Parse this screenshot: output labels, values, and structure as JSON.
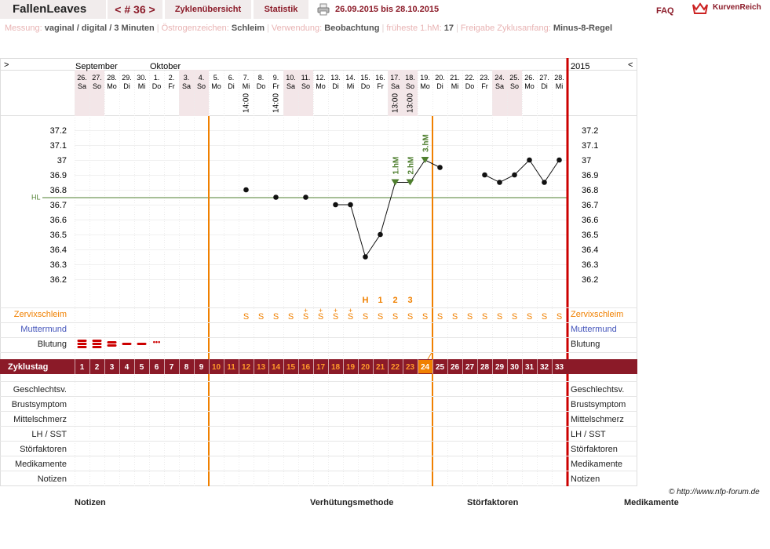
{
  "app": {
    "name": "FallenLeaves",
    "cycle_nav": "< # 36 >",
    "cycles_tab": "Zyklenübersicht",
    "stats_tab": "Statistik",
    "date_range": "26.09.2015 bis 28.10.2015",
    "faq": "FAQ",
    "brand": "KurvenReich"
  },
  "settings": [
    {
      "label": "Messung:",
      "value": "vaginal / digital / 3 Minuten"
    },
    {
      "label": "Östrogenzeichen:",
      "value": "Schleim"
    },
    {
      "label": "Verwendung:",
      "value": "Beobachtung"
    },
    {
      "label": "früheste 1.hM:",
      "value": "17"
    },
    {
      "label": "Freigabe Zyklusanfang:",
      "value": "Minus-8-Regel"
    }
  ],
  "header": {
    "expand_left": ">",
    "expand_right": "<",
    "month1": "September",
    "month2": "Oktober",
    "year": "2015"
  },
  "days": [
    {
      "d": "26.",
      "w": "Sa",
      "we": true
    },
    {
      "d": "27.",
      "w": "So",
      "we": true
    },
    {
      "d": "28.",
      "w": "Mo"
    },
    {
      "d": "29.",
      "w": "Di"
    },
    {
      "d": "30.",
      "w": "Mi"
    },
    {
      "d": "1.",
      "w": "Do"
    },
    {
      "d": "2.",
      "w": "Fr"
    },
    {
      "d": "3.",
      "w": "Sa",
      "we": true
    },
    {
      "d": "4.",
      "w": "So",
      "we": true
    },
    {
      "d": "5.",
      "w": "Mo"
    },
    {
      "d": "6.",
      "w": "Di"
    },
    {
      "d": "7.",
      "w": "Mi",
      "time": "14:00"
    },
    {
      "d": "8.",
      "w": "Do"
    },
    {
      "d": "9.",
      "w": "Fr",
      "time": "14:00"
    },
    {
      "d": "10.",
      "w": "Sa",
      "we": true
    },
    {
      "d": "11.",
      "w": "So",
      "we": true
    },
    {
      "d": "12.",
      "w": "Mo"
    },
    {
      "d": "13.",
      "w": "Di"
    },
    {
      "d": "14.",
      "w": "Mi"
    },
    {
      "d": "15.",
      "w": "Do"
    },
    {
      "d": "16.",
      "w": "Fr"
    },
    {
      "d": "17.",
      "w": "Sa",
      "we": true,
      "time": "13:00"
    },
    {
      "d": "18.",
      "w": "So",
      "we": true,
      "time": "13:00"
    },
    {
      "d": "19.",
      "w": "Mo"
    },
    {
      "d": "20.",
      "w": "Di"
    },
    {
      "d": "21.",
      "w": "Mi"
    },
    {
      "d": "22.",
      "w": "Do"
    },
    {
      "d": "23.",
      "w": "Fr"
    },
    {
      "d": "24.",
      "w": "Sa",
      "we": true
    },
    {
      "d": "25.",
      "w": "So",
      "we": true
    },
    {
      "d": "26.",
      "w": "Mo"
    },
    {
      "d": "27.",
      "w": "Di"
    },
    {
      "d": "28.",
      "w": "Mi"
    }
  ],
  "chart_data": {
    "type": "line",
    "y_ticks": [
      "37.2",
      "37.1",
      "37",
      "36.9",
      "36.8",
      "36.7",
      "36.6",
      "36.5",
      "36.4",
      "36.3",
      "36.2"
    ],
    "ylim": [
      36.2,
      37.2
    ],
    "hl_label": "HL",
    "cover_line": 36.75,
    "temperatures": [
      null,
      null,
      null,
      null,
      null,
      null,
      null,
      null,
      null,
      null,
      null,
      36.8,
      null,
      36.75,
      null,
      36.75,
      null,
      36.7,
      36.7,
      36.35,
      36.5,
      36.85,
      36.85,
      37.0,
      36.95,
      null,
      null,
      36.9,
      36.85,
      36.9,
      37.0,
      36.85,
      37.0
    ],
    "higher_measurements": [
      {
        "day": 22,
        "label": "1.hM"
      },
      {
        "day": 23,
        "label": "2.hM"
      },
      {
        "day": 24,
        "label": "3.hM"
      }
    ],
    "peak_markers": [
      {
        "day": 20,
        "label": "H"
      },
      {
        "day": 21,
        "label": "1"
      },
      {
        "day": 22,
        "label": "2"
      },
      {
        "day": 23,
        "label": "3"
      }
    ],
    "cycle_days": [
      1,
      2,
      3,
      4,
      5,
      6,
      7,
      8,
      9,
      10,
      11,
      12,
      13,
      14,
      15,
      16,
      17,
      18,
      19,
      20,
      21,
      22,
      23,
      24,
      25,
      26,
      27,
      28,
      29,
      30,
      31,
      32,
      33
    ],
    "mucus": [
      "",
      "",
      "",
      "",
      "",
      "",
      "",
      "",
      "",
      "",
      "",
      "S",
      "S",
      "S",
      "S",
      "S+",
      "S+",
      "S+",
      "S+",
      "S",
      "S",
      "S",
      "S",
      "S",
      "S",
      "S",
      "S",
      "S",
      "S",
      "S",
      "S",
      "S",
      "S"
    ],
    "bleeding": [
      3,
      3,
      2,
      1,
      1,
      0.5,
      0,
      0,
      0,
      0,
      0,
      0,
      0,
      0,
      0,
      0,
      0,
      0,
      0,
      0,
      0,
      0,
      0,
      0,
      0,
      0,
      0,
      0,
      0,
      0,
      0,
      0,
      0
    ]
  },
  "rows": {
    "mucus": "Zervixschleim",
    "cervix": "Muttermund",
    "bleeding": "Blutung",
    "cycle_day": "Zyklustag",
    "intercourse": "Geschlechtsv.",
    "breast": "Brustsymptom",
    "midpain": "Mittelschmerz",
    "lh": "LH / SST",
    "disturb": "Störfaktoren",
    "meds": "Medikamente",
    "notes": "Notizen"
  },
  "footer": {
    "notes": "Notizen",
    "method": "Verhütungsmethode",
    "disturb": "Störfaktoren",
    "meds": "Medikamente",
    "copyright": "© http://www.nfp-forum.de"
  },
  "colors": {
    "accent": "#8b1a28",
    "orange": "#f08000",
    "red": "#cc0000",
    "green": "#4f7f2f",
    "weekend": "#f3e6e8"
  }
}
